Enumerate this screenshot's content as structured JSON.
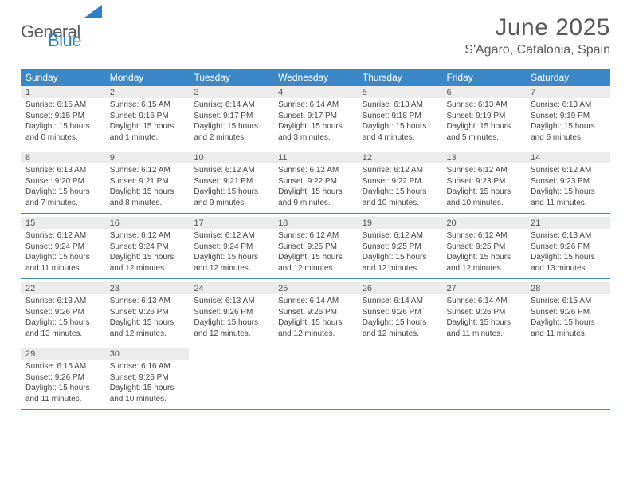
{
  "logo": {
    "text1": "General",
    "text2": "Blue"
  },
  "title": "June 2025",
  "location": "S'Agaro, Catalonia, Spain",
  "colors": {
    "header_bg": "#3c87c7",
    "daynum_bg": "#ececec",
    "text": "#444444",
    "title_text": "#595959",
    "logo_gray": "#5a5a5a",
    "logo_blue": "#2f7fc2"
  },
  "weekdays": [
    "Sunday",
    "Monday",
    "Tuesday",
    "Wednesday",
    "Thursday",
    "Friday",
    "Saturday"
  ],
  "weeks": [
    [
      {
        "day": "1",
        "sunrise": "6:15 AM",
        "sunset": "9:15 PM",
        "daylight": "15 hours and 0 minutes."
      },
      {
        "day": "2",
        "sunrise": "6:15 AM",
        "sunset": "9:16 PM",
        "daylight": "15 hours and 1 minute."
      },
      {
        "day": "3",
        "sunrise": "6:14 AM",
        "sunset": "9:17 PM",
        "daylight": "15 hours and 2 minutes."
      },
      {
        "day": "4",
        "sunrise": "6:14 AM",
        "sunset": "9:17 PM",
        "daylight": "15 hours and 3 minutes."
      },
      {
        "day": "5",
        "sunrise": "6:13 AM",
        "sunset": "9:18 PM",
        "daylight": "15 hours and 4 minutes."
      },
      {
        "day": "6",
        "sunrise": "6:13 AM",
        "sunset": "9:19 PM",
        "daylight": "15 hours and 5 minutes."
      },
      {
        "day": "7",
        "sunrise": "6:13 AM",
        "sunset": "9:19 PM",
        "daylight": "15 hours and 6 minutes."
      }
    ],
    [
      {
        "day": "8",
        "sunrise": "6:13 AM",
        "sunset": "9:20 PM",
        "daylight": "15 hours and 7 minutes."
      },
      {
        "day": "9",
        "sunrise": "6:12 AM",
        "sunset": "9:21 PM",
        "daylight": "15 hours and 8 minutes."
      },
      {
        "day": "10",
        "sunrise": "6:12 AM",
        "sunset": "9:21 PM",
        "daylight": "15 hours and 9 minutes."
      },
      {
        "day": "11",
        "sunrise": "6:12 AM",
        "sunset": "9:22 PM",
        "daylight": "15 hours and 9 minutes."
      },
      {
        "day": "12",
        "sunrise": "6:12 AM",
        "sunset": "9:22 PM",
        "daylight": "15 hours and 10 minutes."
      },
      {
        "day": "13",
        "sunrise": "6:12 AM",
        "sunset": "9:23 PM",
        "daylight": "15 hours and 10 minutes."
      },
      {
        "day": "14",
        "sunrise": "6:12 AM",
        "sunset": "9:23 PM",
        "daylight": "15 hours and 11 minutes."
      }
    ],
    [
      {
        "day": "15",
        "sunrise": "6:12 AM",
        "sunset": "9:24 PM",
        "daylight": "15 hours and 11 minutes."
      },
      {
        "day": "16",
        "sunrise": "6:12 AM",
        "sunset": "9:24 PM",
        "daylight": "15 hours and 12 minutes."
      },
      {
        "day": "17",
        "sunrise": "6:12 AM",
        "sunset": "9:24 PM",
        "daylight": "15 hours and 12 minutes."
      },
      {
        "day": "18",
        "sunrise": "6:12 AM",
        "sunset": "9:25 PM",
        "daylight": "15 hours and 12 minutes."
      },
      {
        "day": "19",
        "sunrise": "6:12 AM",
        "sunset": "9:25 PM",
        "daylight": "15 hours and 12 minutes."
      },
      {
        "day": "20",
        "sunrise": "6:12 AM",
        "sunset": "9:25 PM",
        "daylight": "15 hours and 12 minutes."
      },
      {
        "day": "21",
        "sunrise": "6:13 AM",
        "sunset": "9:26 PM",
        "daylight": "15 hours and 13 minutes."
      }
    ],
    [
      {
        "day": "22",
        "sunrise": "6:13 AM",
        "sunset": "9:26 PM",
        "daylight": "15 hours and 13 minutes."
      },
      {
        "day": "23",
        "sunrise": "6:13 AM",
        "sunset": "9:26 PM",
        "daylight": "15 hours and 12 minutes."
      },
      {
        "day": "24",
        "sunrise": "6:13 AM",
        "sunset": "9:26 PM",
        "daylight": "15 hours and 12 minutes."
      },
      {
        "day": "25",
        "sunrise": "6:14 AM",
        "sunset": "9:26 PM",
        "daylight": "15 hours and 12 minutes."
      },
      {
        "day": "26",
        "sunrise": "6:14 AM",
        "sunset": "9:26 PM",
        "daylight": "15 hours and 12 minutes."
      },
      {
        "day": "27",
        "sunrise": "6:14 AM",
        "sunset": "9:26 PM",
        "daylight": "15 hours and 11 minutes."
      },
      {
        "day": "28",
        "sunrise": "6:15 AM",
        "sunset": "9:26 PM",
        "daylight": "15 hours and 11 minutes."
      }
    ],
    [
      {
        "day": "29",
        "sunrise": "6:15 AM",
        "sunset": "9:26 PM",
        "daylight": "15 hours and 11 minutes."
      },
      {
        "day": "30",
        "sunrise": "6:16 AM",
        "sunset": "9:26 PM",
        "daylight": "15 hours and 10 minutes."
      },
      null,
      null,
      null,
      null,
      null
    ]
  ],
  "labels": {
    "sunrise": "Sunrise: ",
    "sunset": "Sunset: ",
    "daylight": "Daylight: "
  }
}
